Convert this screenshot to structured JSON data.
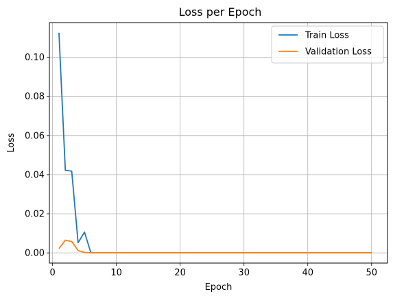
{
  "chart_data": {
    "type": "line",
    "title": "Loss per Epoch",
    "xlabel": "Epoch",
    "ylabel": "Loss",
    "xlim": [
      -0.5,
      52.5
    ],
    "ylim": [
      -0.0052,
      0.1177
    ],
    "xticks": [
      0,
      10,
      20,
      30,
      40,
      50
    ],
    "yticks": [
      0.0,
      0.02,
      0.04,
      0.06,
      0.08,
      0.1
    ],
    "ytick_labels": [
      "0.00",
      "0.02",
      "0.04",
      "0.06",
      "0.08",
      "0.10"
    ],
    "grid": true,
    "legend": "top-right",
    "series": [
      {
        "name": "Train Loss",
        "color": "#1f77b4",
        "x": [
          1,
          2,
          3,
          4,
          5,
          6,
          7,
          8,
          9,
          10,
          11,
          12,
          13,
          14,
          15,
          16,
          17,
          18,
          19,
          20,
          21,
          22,
          23,
          24,
          25,
          26,
          27,
          28,
          29,
          30,
          31,
          32,
          33,
          34,
          35,
          36,
          37,
          38,
          39,
          40,
          41,
          42,
          43,
          44,
          45,
          46,
          47,
          48,
          49,
          50
        ],
        "values": [
          0.1125,
          0.0422,
          0.0418,
          0.0052,
          0.0106,
          0.0001,
          0.0001,
          0.0001,
          0.0001,
          0.0001,
          0.0001,
          0.0001,
          0.0001,
          0.0001,
          0.0001,
          0.0001,
          0.0001,
          0.0001,
          0.0001,
          0.0001,
          0.0001,
          0.0001,
          0.0001,
          0.0001,
          0.0001,
          0.0001,
          0.0001,
          0.0001,
          0.0001,
          0.0001,
          0.0001,
          0.0001,
          0.0001,
          0.0001,
          0.0001,
          0.0001,
          0.0001,
          0.0001,
          0.0001,
          0.0001,
          0.0001,
          0.0001,
          0.0001,
          0.0001,
          0.0001,
          0.0001,
          0.0001,
          0.0001,
          0.0001,
          0.0001
        ]
      },
      {
        "name": "Validation Loss",
        "color": "#ff7f0e",
        "x": [
          1,
          2,
          3,
          4,
          5,
          6,
          7,
          8,
          9,
          10,
          11,
          12,
          13,
          14,
          15,
          16,
          17,
          18,
          19,
          20,
          21,
          22,
          23,
          24,
          25,
          26,
          27,
          28,
          29,
          30,
          31,
          32,
          33,
          34,
          35,
          36,
          37,
          38,
          39,
          40,
          41,
          42,
          43,
          44,
          45,
          46,
          47,
          48,
          49,
          50
        ],
        "values": [
          0.0022,
          0.0065,
          0.0058,
          0.0012,
          0.0002,
          0.0001,
          0.0001,
          0.0001,
          0.0001,
          0.0001,
          0.0001,
          0.0001,
          0.0001,
          0.0001,
          0.0001,
          0.0001,
          0.0001,
          0.0001,
          0.0001,
          0.0001,
          0.0001,
          0.0001,
          0.0001,
          0.0001,
          0.0001,
          0.0001,
          0.0001,
          0.0001,
          0.0001,
          0.0001,
          0.0001,
          0.0001,
          0.0001,
          0.0001,
          0.0001,
          0.0001,
          0.0001,
          0.0001,
          0.0001,
          0.0001,
          0.0001,
          0.0001,
          0.0001,
          0.0001,
          0.0001,
          0.0001,
          0.0001,
          0.0001,
          0.0001,
          0.0001
        ]
      }
    ]
  }
}
